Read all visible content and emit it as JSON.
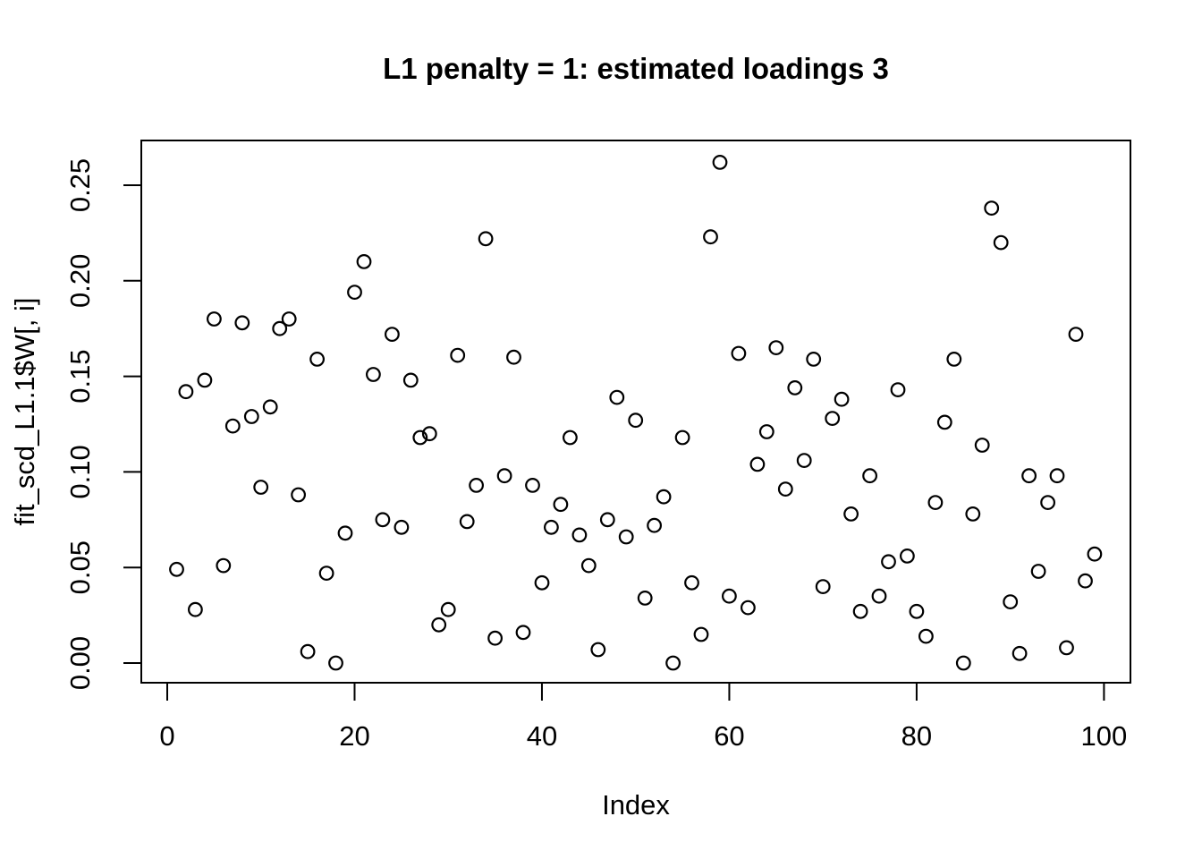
{
  "title": "L1 penalty = 1: estimated loadings 3",
  "colors": {
    "foreground": "#000000",
    "background": "#ffffff"
  },
  "chart_data": {
    "type": "scatter",
    "title": "L1 penalty = 1: estimated loadings 3",
    "xlabel": "Index",
    "ylabel": "fit_scd_L1.1$W[, i]",
    "marker": "open-circle",
    "grid": false,
    "legend": "none",
    "x_ticks": [
      0,
      20,
      40,
      60,
      80,
      100
    ],
    "y_ticks": [
      0.0,
      0.05,
      0.1,
      0.15,
      0.2,
      0.25
    ],
    "xlim": [
      -2.8,
      102.9
    ],
    "ylim": [
      -0.0103,
      0.2735
    ],
    "x": [
      1,
      2,
      3,
      4,
      5,
      6,
      7,
      8,
      9,
      10,
      11,
      12,
      13,
      14,
      15,
      16,
      17,
      18,
      19,
      20,
      21,
      22,
      23,
      24,
      25,
      26,
      27,
      28,
      29,
      30,
      31,
      32,
      33,
      34,
      35,
      36,
      37,
      38,
      39,
      40,
      41,
      42,
      43,
      44,
      45,
      46,
      47,
      48,
      49,
      50,
      51,
      52,
      53,
      54,
      55,
      56,
      57,
      58,
      59,
      60,
      61,
      62,
      63,
      64,
      65,
      66,
      67,
      68,
      69,
      70,
      71,
      72,
      73,
      74,
      75,
      76,
      77,
      78,
      79,
      80,
      81,
      82,
      83,
      84,
      85,
      86,
      87,
      88,
      89,
      90,
      91,
      92,
      93,
      94,
      95,
      96,
      97,
      98,
      99
    ],
    "y": [
      0.049,
      0.142,
      0.028,
      0.148,
      0.18,
      0.051,
      0.124,
      0.178,
      0.129,
      0.092,
      0.134,
      0.175,
      0.18,
      0.088,
      0.006,
      0.159,
      0.047,
      0.0,
      0.068,
      0.194,
      0.21,
      0.151,
      0.075,
      0.172,
      0.071,
      0.148,
      0.118,
      0.12,
      0.02,
      0.028,
      0.161,
      0.074,
      0.093,
      0.222,
      0.013,
      0.098,
      0.16,
      0.016,
      0.093,
      0.042,
      0.071,
      0.083,
      0.118,
      0.067,
      0.051,
      0.007,
      0.075,
      0.139,
      0.066,
      0.127,
      0.034,
      0.072,
      0.087,
      0.0,
      0.118,
      0.042,
      0.015,
      0.223,
      0.262,
      0.035,
      0.162,
      0.029,
      0.104,
      0.121,
      0.165,
      0.091,
      0.144,
      0.106,
      0.159,
      0.04,
      0.128,
      0.138,
      0.078,
      0.027,
      0.098,
      0.035,
      0.053,
      0.143,
      0.056,
      0.027,
      0.014,
      0.084,
      0.126,
      0.159,
      0.0,
      0.078,
      0.114,
      0.238,
      0.22,
      0.032,
      0.005,
      0.098,
      0.048,
      0.084,
      0.098,
      0.008,
      0.172,
      0.043,
      0.057
    ]
  }
}
